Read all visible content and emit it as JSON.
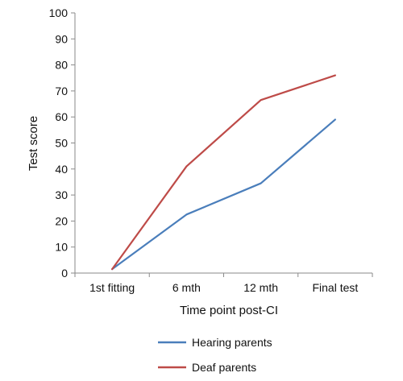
{
  "chart_data": {
    "type": "line",
    "categories": [
      "1st fitting",
      "6 mth",
      "12 mth",
      "Final test"
    ],
    "series": [
      {
        "name": "Hearing parents",
        "values": [
          1.5,
          22.5,
          34.5,
          59
        ],
        "color": "#4a7ebb"
      },
      {
        "name": "Deaf parents",
        "values": [
          1.5,
          41,
          66.5,
          76
        ],
        "color": "#be4b48"
      }
    ],
    "xlabel": "Time point post-CI",
    "ylabel": "Test score",
    "ylim": [
      0,
      100
    ],
    "yticks": [
      0,
      10,
      20,
      30,
      40,
      50,
      60,
      70,
      80,
      90,
      100
    ],
    "grid": false,
    "legend": "bottom"
  }
}
